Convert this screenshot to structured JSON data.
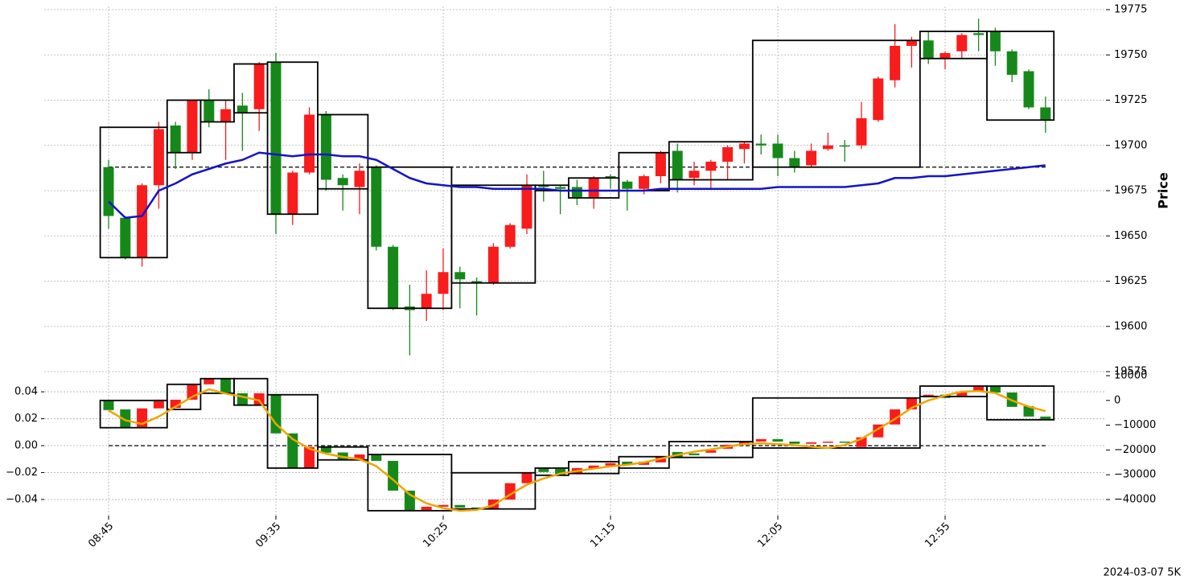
{
  "chart_data": [
    {
      "type": "candlestick",
      "categories": [
        "08:45",
        null,
        null,
        null,
        null,
        null,
        null,
        null,
        null,
        null,
        "09:35",
        null,
        null,
        null,
        null,
        null,
        null,
        null,
        null,
        null,
        "10:25",
        null,
        null,
        null,
        null,
        null,
        null,
        null,
        null,
        null,
        "11:15",
        null,
        null,
        null,
        null,
        null,
        null,
        null,
        null,
        null,
        "12:05",
        null,
        null,
        null,
        null,
        null,
        null,
        null,
        null,
        null,
        "12:55",
        null,
        null,
        null,
        null,
        null,
        null
      ],
      "open": [
        19688,
        19660,
        19638,
        19678,
        19711,
        19696,
        19725,
        19713,
        19722,
        19720,
        19746,
        19662,
        19685,
        19717,
        19682,
        19677,
        19688,
        19644,
        19611,
        19610,
        19618,
        19630,
        19625,
        19624,
        19644,
        19654,
        19678,
        19677,
        19677,
        19671,
        19683,
        19680,
        19676,
        19683,
        19697,
        19682,
        19686,
        19691,
        19698,
        19701,
        19701,
        19693,
        19689,
        19698,
        19700,
        19700,
        19714,
        19736,
        19755,
        19758,
        19748,
        19752,
        19762,
        19763,
        19752,
        19741,
        19721
      ],
      "high": [
        19692,
        19661,
        19679,
        19713,
        19713,
        19725,
        19731,
        19725,
        19729,
        19746,
        19751,
        19686,
        19721,
        19719,
        19684,
        19690,
        19689,
        19645,
        19623,
        19631,
        19643,
        19633,
        19627,
        19646,
        19657,
        19684,
        19686,
        19678,
        19681,
        19683,
        19684,
        19681,
        19684,
        19697,
        19701,
        19691,
        19692,
        19700,
        19702,
        19706,
        19706,
        19697,
        19701,
        19707,
        19703,
        19724,
        19738,
        19767,
        19760,
        19763,
        19752,
        19762,
        19770,
        19765,
        19753,
        19742,
        19727
      ],
      "low": [
        19654,
        19637,
        19633,
        19665,
        19687,
        19692,
        19710,
        19692,
        19697,
        19708,
        19651,
        19656,
        19684,
        19675,
        19664,
        19662,
        19642,
        19609,
        19584,
        19603,
        19609,
        19610,
        19606,
        19623,
        19643,
        19651,
        19669,
        19662,
        19667,
        19665,
        19676,
        19664,
        19673,
        19679,
        19674,
        19678,
        19676,
        19681,
        19690,
        19695,
        19683,
        19685,
        19688,
        19697,
        19691,
        19698,
        19713,
        19732,
        19743,
        19745,
        19742,
        19748,
        19752,
        19744,
        19735,
        19720,
        19707
      ],
      "close": [
        19661,
        19638,
        19678,
        19709,
        19696,
        19725,
        19713,
        19720,
        19718,
        19745,
        19662,
        19685,
        19717,
        19681,
        19678,
        19686,
        19644,
        19610,
        19609,
        19618,
        19630,
        19626,
        19624,
        19644,
        19656,
        19678,
        19677,
        19676,
        19671,
        19682,
        19682,
        19676,
        19683,
        19696,
        19681,
        19686,
        19691,
        19699,
        19701,
        19700,
        19693,
        19688,
        19697,
        19700,
        19700,
        19715,
        19737,
        19755,
        19758,
        19748,
        19751,
        19761,
        19761,
        19752,
        19739,
        19721,
        19714
      ],
      "up_color": "#f81c1c",
      "down_color": "#16881a",
      "line": {
        "color": "#1414c8",
        "values": [
          19669,
          19660,
          19661,
          19675,
          19679,
          19684,
          19687,
          19690,
          19692,
          19696,
          19695,
          19694,
          19695,
          19695,
          19694,
          19694,
          19692,
          19687,
          19682,
          19679,
          19678,
          19677,
          19677,
          19676,
          19676,
          19676,
          19676,
          19675,
          19675,
          19675,
          19675,
          19675,
          19675,
          19676,
          19676,
          19676,
          19676,
          19676,
          19676,
          19676,
          19677,
          19677,
          19677,
          19677,
          19677,
          19678,
          19679,
          19682,
          19682,
          19683,
          19683,
          19684,
          19685,
          19686,
          19687,
          19688,
          19689
        ]
      },
      "boxes": [
        {
          "start": 0,
          "end": 3,
          "high": 19710,
          "low": 19638
        },
        {
          "start": 4,
          "end": 5,
          "high": 19725,
          "low": 19696
        },
        {
          "start": 6,
          "end": 7,
          "high": 19725,
          "low": 19713
        },
        {
          "start": 8,
          "end": 9,
          "high": 19745,
          "low": 19718
        },
        {
          "start": 10,
          "end": 12,
          "high": 19746,
          "low": 19662
        },
        {
          "start": 13,
          "end": 15,
          "high": 19717,
          "low": 19676
        },
        {
          "start": 16,
          "end": 20,
          "high": 19688,
          "low": 19610
        },
        {
          "start": 21,
          "end": 25,
          "high": 19678,
          "low": 19624
        },
        {
          "start": 26,
          "end": 27,
          "high": 19678,
          "low": 19675
        },
        {
          "start": 28,
          "end": 30,
          "high": 19682,
          "low": 19671
        },
        {
          "start": 31,
          "end": 33,
          "high": 19696,
          "low": 19675
        },
        {
          "start": 34,
          "end": 38,
          "high": 19702,
          "low": 19681
        },
        {
          "start": 39,
          "end": 48,
          "high": 19758,
          "low": 19688
        },
        {
          "start": 49,
          "end": 52,
          "high": 19763,
          "low": 19748
        },
        {
          "start": 53,
          "end": 56,
          "high": 19763,
          "low": 19714
        }
      ],
      "hline": 19688,
      "ylabel": "Price",
      "ylim": [
        19575,
        19775
      ],
      "yticks": [
        19575,
        19600,
        19625,
        19650,
        19675,
        19700,
        19725,
        19750,
        19775
      ],
      "grid": true
    },
    {
      "type": "candlestick",
      "open": [
        0,
        -3600,
        -11000,
        -3200,
        -3000,
        300,
        6500,
        8800,
        2900,
        -1900,
        2300,
        -13300,
        -27300,
        -18800,
        -21000,
        -23700,
        -21800,
        -24400,
        -36400,
        -44500,
        -42900,
        -42200,
        -43200,
        -43800,
        -40000,
        -33400,
        -27300,
        -27600,
        -29500,
        -27600,
        -26300,
        -24700,
        -26000,
        -25000,
        -20800,
        -21400,
        -21100,
        -19500,
        -17900,
        -16600,
        -15600,
        -16600,
        -17500,
        -16900,
        -16600,
        -18800,
        -14900,
        -9700,
        -3600,
        1300,
        2300,
        1900,
        3600,
        5800,
        3200,
        -2300,
        -6500
      ],
      "close": [
        -3900,
        -11000,
        -3200,
        300,
        300,
        6500,
        8800,
        2900,
        -1900,
        2900,
        -13300,
        -27300,
        -18800,
        -21100,
        -24000,
        -21800,
        -24400,
        -36400,
        -44500,
        -42900,
        -42200,
        -43200,
        -43800,
        -40000,
        -33400,
        -29200,
        -28900,
        -29900,
        -27300,
        -26300,
        -25300,
        -26000,
        -24700,
        -22700,
        -23100,
        -22100,
        -20100,
        -17900,
        -16600,
        -15600,
        -16600,
        -17500,
        -16900,
        -16600,
        -17000,
        -14900,
        -9700,
        -3600,
        1000,
        2300,
        1000,
        3600,
        5800,
        3200,
        -2600,
        -6500,
        -7800
      ],
      "up_color": "#f81c1c",
      "down_color": "#16881a",
      "axis": "y2",
      "line": {
        "color": "#f0a500",
        "values": [
          -4000,
          -8000,
          -9500,
          -6500,
          -2500,
          1500,
          4500,
          2800,
          1500,
          0,
          -9500,
          -15600,
          -19500,
          -21500,
          -22800,
          -23700,
          -26500,
          -32000,
          -38000,
          -41500,
          -43500,
          -44500,
          -44200,
          -42300,
          -38000,
          -34000,
          -31500,
          -29500,
          -28500,
          -27500,
          -26600,
          -26000,
          -25000,
          -23500,
          -22000,
          -20700,
          -19800,
          -18600,
          -17600,
          -17300,
          -17600,
          -18100,
          -18700,
          -19200,
          -18000,
          -15500,
          -11500,
          -7500,
          -3000,
          0,
          2000,
          3500,
          3800,
          3000,
          0,
          -2500,
          -4300
        ]
      },
      "boxes": [
        {
          "start": 0,
          "end": 3,
          "high": 0,
          "low": -11000
        },
        {
          "start": 4,
          "end": 5,
          "high": 6500,
          "low": -3600
        },
        {
          "start": 6,
          "end": 7,
          "high": 8800,
          "low": 2900
        },
        {
          "start": 8,
          "end": 9,
          "high": 8800,
          "low": -1900
        },
        {
          "start": 10,
          "end": 12,
          "high": 2300,
          "low": -27300
        },
        {
          "start": 13,
          "end": 15,
          "high": -18800,
          "low": -24000
        },
        {
          "start": 16,
          "end": 20,
          "high": -21800,
          "low": -44500
        },
        {
          "start": 21,
          "end": 25,
          "high": -29200,
          "low": -43800
        },
        {
          "start": 26,
          "end": 27,
          "high": -27300,
          "low": -30200
        },
        {
          "start": 28,
          "end": 30,
          "high": -24700,
          "low": -29500
        },
        {
          "start": 31,
          "end": 33,
          "high": -22700,
          "low": -27300
        },
        {
          "start": 34,
          "end": 38,
          "high": -16600,
          "low": -23000
        },
        {
          "start": 39,
          "end": 48,
          "high": 1000,
          "low": -19200
        },
        {
          "start": 49,
          "end": 52,
          "high": 5800,
          "low": 1600
        },
        {
          "start": 53,
          "end": 56,
          "high": 5800,
          "low": -7800
        }
      ],
      "hline": 0,
      "ylim": [
        -0.052,
        0.052
      ],
      "yticks": [
        {
          "value": -0.04,
          "label": "−0.04"
        },
        {
          "value": -0.02,
          "label": "−0.02"
        },
        {
          "value": 0,
          "label": "0.00"
        },
        0.02,
        0.04
      ],
      "y2lim": [
        -46500,
        10000
      ],
      "y2ticks": [
        {
          "value": -40000,
          "label": "−40000"
        },
        {
          "value": -30000,
          "label": "−30000"
        },
        {
          "value": -20000,
          "label": "−20000"
        },
        {
          "value": -10000,
          "label": "−10000"
        },
        0,
        10000
      ],
      "grid": true
    }
  ],
  "footer": "2024-03-07 5K"
}
